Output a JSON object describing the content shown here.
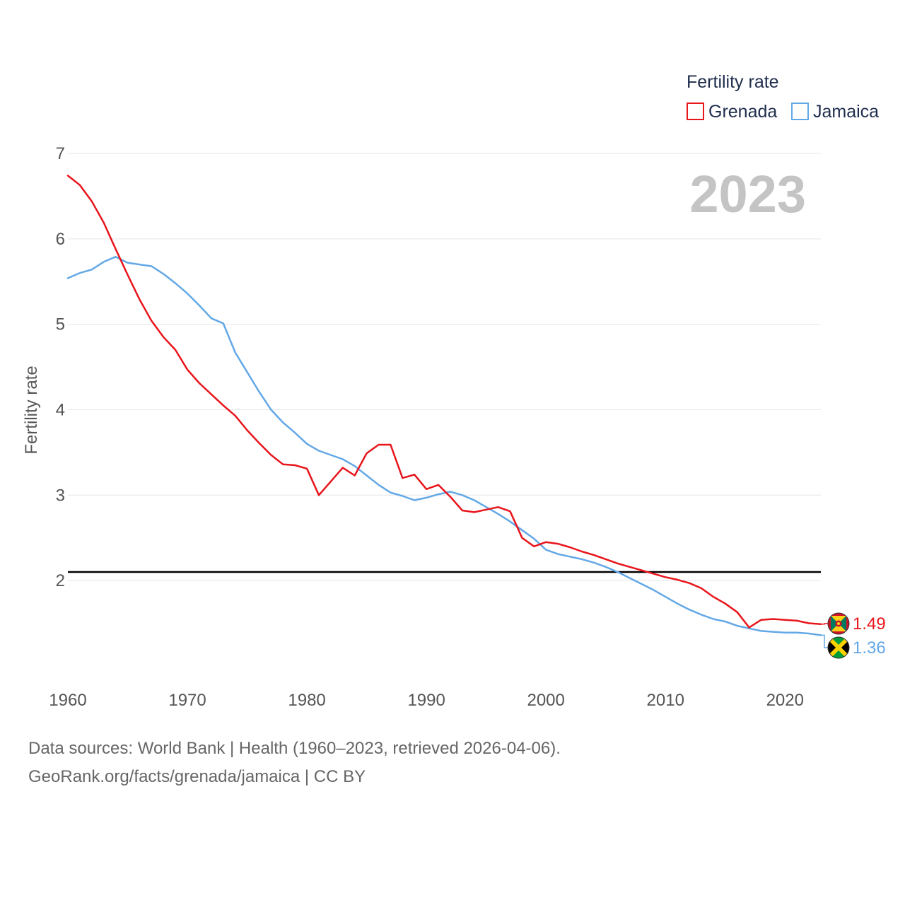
{
  "chart_data": {
    "type": "line",
    "ylabel": "Fertility rate",
    "xlabel": "",
    "year_label": "2023",
    "xlim": [
      1960,
      2023
    ],
    "ylim": [
      0.9,
      7.0
    ],
    "x_ticks": [
      1960,
      1970,
      1980,
      1990,
      2000,
      2010,
      2020
    ],
    "y_ticks": [
      2,
      3,
      4,
      5,
      6,
      7
    ],
    "reference_line": 2.1,
    "legend": {
      "title": "Fertility rate",
      "placement": "top-right"
    },
    "series": [
      {
        "name": "Grenada",
        "color": "#e8151b",
        "end_label": "1.49",
        "flag_icon": "grenada-flag-icon",
        "x": [
          1960,
          1961,
          1962,
          1963,
          1964,
          1965,
          1966,
          1967,
          1968,
          1969,
          1970,
          1971,
          1972,
          1973,
          1974,
          1975,
          1976,
          1977,
          1978,
          1979,
          1980,
          1981,
          1982,
          1983,
          1984,
          1985,
          1986,
          1987,
          1988,
          1989,
          1990,
          1991,
          1992,
          1993,
          1994,
          1995,
          1996,
          1997,
          1998,
          1999,
          2000,
          2001,
          2002,
          2003,
          2004,
          2005,
          2006,
          2007,
          2008,
          2009,
          2010,
          2011,
          2012,
          2013,
          2014,
          2015,
          2016,
          2017,
          2018,
          2019,
          2020,
          2021,
          2022,
          2023
        ],
        "values": [
          6.74,
          6.63,
          6.44,
          6.19,
          5.88,
          5.58,
          5.29,
          5.04,
          4.85,
          4.7,
          4.47,
          4.31,
          4.18,
          4.05,
          3.93,
          3.76,
          3.61,
          3.47,
          3.36,
          3.35,
          3.31,
          3.0,
          3.16,
          3.32,
          3.23,
          3.49,
          3.59,
          3.59,
          3.2,
          3.24,
          3.07,
          3.12,
          2.98,
          2.82,
          2.8,
          2.83,
          2.86,
          2.81,
          2.5,
          2.4,
          2.45,
          2.43,
          2.39,
          2.34,
          2.3,
          2.25,
          2.2,
          2.16,
          2.12,
          2.08,
          2.04,
          2.01,
          1.97,
          1.91,
          1.81,
          1.73,
          1.63,
          1.45,
          1.54,
          1.55,
          1.54,
          1.53,
          1.5,
          1.49
        ]
      },
      {
        "name": "Jamaica",
        "color": "#63a8e6",
        "end_label": "1.36",
        "flag_icon": "jamaica-flag-icon",
        "x": [
          1960,
          1961,
          1962,
          1963,
          1964,
          1965,
          1966,
          1967,
          1968,
          1969,
          1970,
          1971,
          1972,
          1973,
          1974,
          1975,
          1976,
          1977,
          1978,
          1979,
          1980,
          1981,
          1982,
          1983,
          1984,
          1985,
          1986,
          1987,
          1988,
          1989,
          1990,
          1991,
          1992,
          1993,
          1994,
          1995,
          1996,
          1997,
          1998,
          1999,
          2000,
          2001,
          2002,
          2003,
          2004,
          2005,
          2006,
          2007,
          2008,
          2009,
          2010,
          2011,
          2012,
          2013,
          2014,
          2015,
          2016,
          2017,
          2018,
          2019,
          2020,
          2021,
          2022,
          2023
        ],
        "values": [
          5.54,
          5.6,
          5.64,
          5.73,
          5.79,
          5.72,
          5.7,
          5.68,
          5.59,
          5.48,
          5.36,
          5.22,
          5.07,
          5.01,
          4.67,
          4.44,
          4.21,
          4.0,
          3.85,
          3.73,
          3.6,
          3.52,
          3.47,
          3.42,
          3.34,
          3.23,
          3.12,
          3.03,
          2.99,
          2.94,
          2.97,
          3.01,
          3.04,
          3.0,
          2.94,
          2.86,
          2.78,
          2.69,
          2.59,
          2.49,
          2.36,
          2.31,
          2.28,
          2.25,
          2.21,
          2.16,
          2.1,
          2.03,
          1.96,
          1.89,
          1.81,
          1.73,
          1.66,
          1.6,
          1.55,
          1.52,
          1.47,
          1.44,
          1.41,
          1.4,
          1.39,
          1.39,
          1.38,
          1.36
        ]
      }
    ]
  },
  "footer": {
    "source_line": "Data sources: World Bank | Health (1960–2023, retrieved 2026-04-06).",
    "credit_line": "GeoRank.org/facts/grenada/jamaica | CC BY"
  }
}
